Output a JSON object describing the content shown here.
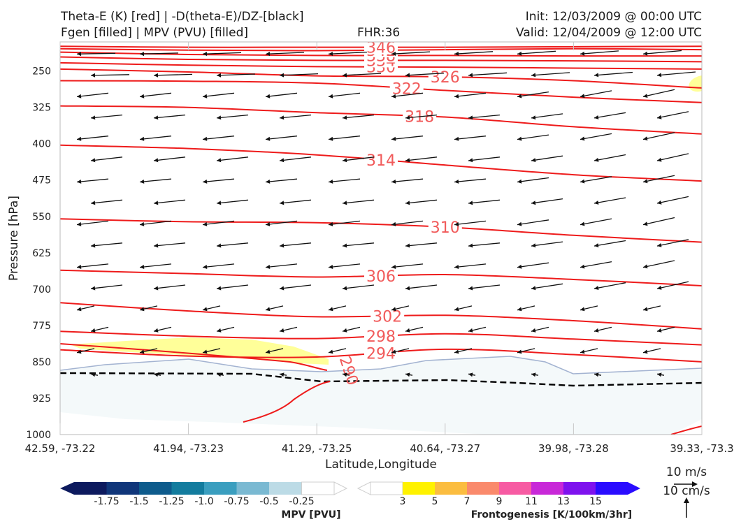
{
  "header": {
    "title_line1": "Theta-E (K) [red] | -D(theta-E)/DZ-[black]",
    "title_line2": "Fgen [filled] | MPV (PVU) [filled]",
    "fhr": "FHR:36",
    "init": "Init: 12/03/2009 @ 00:00 UTC",
    "valid": "Valid: 12/04/2009 @ 12:00 UTC"
  },
  "chart_data": {
    "type": "contour",
    "xlabel": "Latitude,Longitude",
    "ylabel": "Pressure [hPa]",
    "x_ticks": [
      "42.59, -73.22",
      "41.94, -73.23",
      "41.29, -73.25",
      "40.64, -73.27",
      "39.98, -73.28",
      "39.33, -73.3"
    ],
    "y_ticks": [
      250,
      325,
      400,
      475,
      550,
      625,
      700,
      775,
      850,
      925,
      1000
    ],
    "ylim": [
      1000,
      190
    ],
    "y_scale": "linear, inverted",
    "theta_e_contours": [
      {
        "level": 290,
        "x": [
          0.0,
          0.35,
          0.6,
          0.78,
          0.85,
          0.88
        ],
        "p": [
          null,
          null,
          null,
          null,
          null,
          null
        ]
      },
      {
        "level": 294,
        "x": [
          0,
          1,
          2,
          3,
          4,
          5
        ],
        "p": [
          825,
          838,
          840,
          824,
          835,
          850
        ]
      },
      {
        "level": 298,
        "x": [
          0,
          1,
          2,
          3,
          4,
          5
        ],
        "p": [
          787,
          797,
          802,
          792,
          803,
          815
        ]
      },
      {
        "level": 302,
        "x": [
          0,
          1,
          2,
          3,
          4,
          5
        ],
        "p": [
          728,
          745,
          757,
          754,
          765,
          782
        ]
      },
      {
        "level": 306,
        "x": [
          0,
          1,
          2,
          3,
          4,
          5
        ],
        "p": [
          661,
          668,
          675,
          670,
          680,
          693
        ]
      },
      {
        "level": 310,
        "x": [
          0,
          1,
          2,
          3,
          4,
          5
        ],
        "p": [
          555,
          561,
          563,
          572,
          589,
          603
        ]
      },
      {
        "level": 314,
        "x": [
          0,
          1,
          2,
          3,
          4,
          5
        ],
        "p": [
          403,
          410,
          423,
          444,
          464,
          477
        ]
      },
      {
        "level": 318,
        "x": [
          0,
          1,
          2,
          3,
          4,
          5
        ],
        "p": [
          322,
          325,
          336,
          345,
          365,
          380
        ]
      },
      {
        "level": 322,
        "x": [
          0,
          1,
          2,
          3,
          4,
          5
        ],
        "p": [
          270,
          271,
          275,
          290,
          304,
          315
        ]
      },
      {
        "level": 326,
        "x": [
          0,
          1,
          2,
          3,
          4,
          5
        ],
        "p": [
          246,
          252,
          260,
          262,
          270,
          285
        ]
      },
      {
        "level": 330,
        "x": [
          0,
          1,
          2,
          3,
          4,
          5
        ],
        "p": [
          233,
          238,
          241,
          242,
          244,
          246
        ]
      },
      {
        "level": 334,
        "x": [
          0,
          1,
          2,
          3,
          4,
          5
        ],
        "p": [
          221,
          226,
          228,
          228,
          229,
          231
        ]
      },
      {
        "level": 338,
        "x": [
          0,
          1,
          2,
          3,
          4,
          5
        ],
        "p": [
          211,
          216,
          218,
          218,
          219,
          219
        ]
      },
      {
        "level": 342,
        "x": [
          0,
          1,
          2,
          3,
          4,
          5
        ],
        "p": [
          204,
          207,
          208,
          206,
          204,
          206
        ]
      },
      {
        "level": 346,
        "x": [
          0,
          1,
          2,
          3,
          4,
          5
        ],
        "p": [
          199,
          201,
          201,
          201,
          200,
          199
        ]
      }
    ],
    "theta_e_labels": [
      "294",
      "298",
      "302",
      "306",
      "310",
      "314",
      "318",
      "322",
      "326",
      "330",
      "334",
      "338",
      "342",
      "346",
      "290"
    ],
    "mpv_colorbar": {
      "label": "MPV [PVU]",
      "ticks": [
        "-1.75",
        "-1.5",
        "-1.25",
        "-1.0",
        "-0.75",
        "-0.5",
        "-0.25"
      ],
      "colors": [
        "#0d1a5e",
        "#10367a",
        "#0e5b8c",
        "#137c9e",
        "#3a9ebf",
        "#7ab9d2",
        "#bcdbe6",
        "#ffffff"
      ]
    },
    "fgen_colorbar": {
      "label": "Frontogenesis [K/100km/3hr]",
      "ticks": [
        "3",
        "5",
        "7",
        "9",
        "11",
        "13",
        "15"
      ],
      "colors": [
        "#ffffff",
        "#fff200",
        "#fbbd40",
        "#fa8a6c",
        "#f75ba3",
        "#c828d8",
        "#7e12ee",
        "#2a0cff"
      ]
    },
    "vector_key": {
      "horizontal_label": "10 m/s",
      "vertical_label": "10 cm/s"
    },
    "colors": {
      "theta_e": "#ee1b1b",
      "theta_e_label": "#f15a5a",
      "ground_fill": "#f4f9fa",
      "ground_line": "#a3b3d1",
      "fgen_fill": "#ffff99",
      "arrows": "#111111",
      "dashed": "#000000"
    }
  }
}
